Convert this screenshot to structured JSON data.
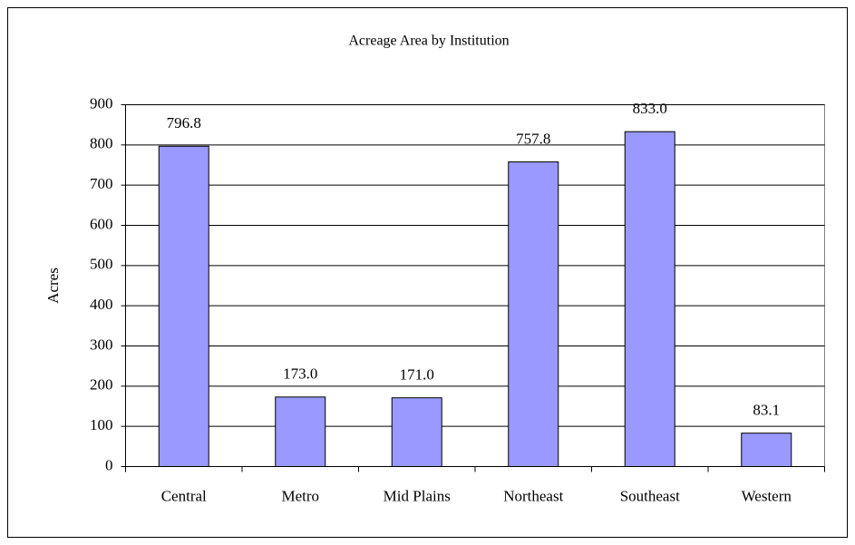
{
  "chart_data": {
    "type": "bar",
    "title": "Acreage Area by Institution",
    "y_label": "Acres",
    "categories": [
      "Central",
      "Metro",
      "Mid Plains",
      "Northeast",
      "Southeast",
      "Western"
    ],
    "values": [
      796.8,
      173,
      171,
      757.8,
      833,
      83.1
    ],
    "value_labels": [
      "796.8",
      "173.0",
      "171.0",
      "757.8",
      "833.0",
      "83.1"
    ],
    "color": "#9999ff",
    "ylim": [
      0,
      900
    ],
    "yticks": [
      0,
      100,
      200,
      300,
      400,
      500,
      600,
      700,
      800,
      900
    ],
    "grid": true
  }
}
